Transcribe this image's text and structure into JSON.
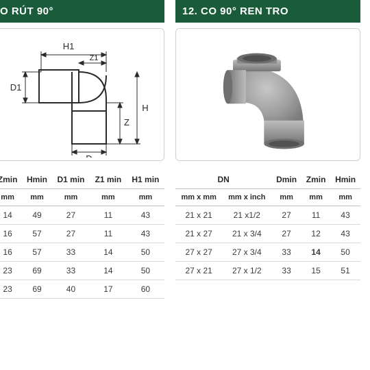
{
  "left": {
    "title": "O RÚT 90°",
    "diagram": {
      "labels": {
        "H1": "H1",
        "Z1": "Z1",
        "D1": "D1",
        "Z": "Z",
        "H": "H",
        "D": "D"
      },
      "stroke": "#2a2a2a"
    },
    "table": {
      "headers": [
        "Zmin",
        "Hmin",
        "D1 min",
        "Z1 min",
        "H1 min"
      ],
      "units": [
        "mm",
        "mm",
        "mm",
        "mm",
        "mm"
      ],
      "rows": [
        [
          "14",
          "49",
          "27",
          "11",
          "43"
        ],
        [
          "16",
          "57",
          "27",
          "11",
          "43"
        ],
        [
          "16",
          "57",
          "33",
          "14",
          "50"
        ],
        [
          "23",
          "69",
          "33",
          "14",
          "50"
        ],
        [
          "23",
          "69",
          "40",
          "17",
          "60"
        ]
      ]
    }
  },
  "right": {
    "title": "12.  CO 90° REN TRO",
    "photo": {
      "body_color": "#9f9f9f",
      "shadow_color": "#7c7c7c",
      "highlight_color": "#c7c7c7"
    },
    "table": {
      "top_headers": [
        "DN",
        "Dmin",
        "Zmin",
        "Hmin"
      ],
      "sub_headers": [
        "mm x mm",
        "mm x inch",
        "mm",
        "mm",
        "mm"
      ],
      "rows": [
        [
          "21 x 21",
          "21 x1/2",
          "27",
          "11",
          "43"
        ],
        [
          "21 x 27",
          "21 x 3/4",
          "27",
          "12",
          "43"
        ],
        [
          "27 x 27",
          "27 x 3/4",
          "33",
          "14",
          "50"
        ],
        [
          "27 x 21",
          "27 x 1/2",
          "33",
          "15",
          "51"
        ]
      ],
      "bold_cells": [
        [
          2,
          3
        ]
      ]
    }
  },
  "colors": {
    "header_bg": "#1a5c3a",
    "border": "#cfcfcf",
    "row_border": "#d9d9d9"
  }
}
